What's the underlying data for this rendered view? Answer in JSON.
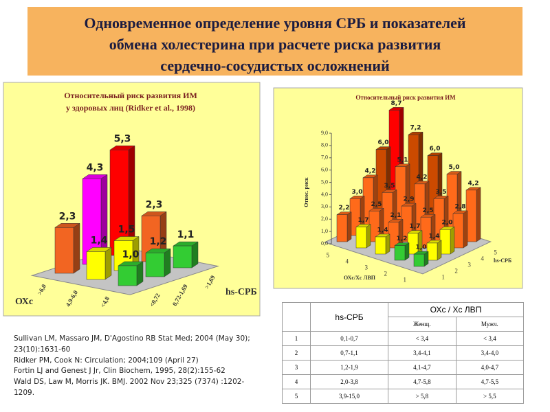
{
  "title_lines": [
    "Одновременное определение уровня СРБ и показателей",
    "обмена холестерина при расчете риска развития",
    "сердечно-сосудистых осложнений"
  ],
  "chart_data": [
    {
      "type": "bar3d",
      "title": [
        "Относительный риск развития ИМ",
        "у здоровых лиц (Ridker et al., 1998)"
      ],
      "x_label": "ОХс",
      "depth_label": "hs-СРБ",
      "categories": [
        ">6,0",
        "4,9-6,0",
        "<4,8"
      ],
      "series": [
        {
          "name": "<0,72",
          "colors": [
            "#f26522",
            "#ffff00",
            "#33cc33"
          ],
          "values": [
            2.3,
            1.4,
            1.0
          ],
          "value_labels": [
            "2,3",
            "1,4",
            "1,0"
          ]
        },
        {
          "name": "0,72-1,69",
          "colors": [
            "#ff00ff",
            "#ffff00",
            "#33cc33"
          ],
          "values": [
            4.3,
            1.5,
            1.2
          ],
          "value_labels": [
            "4,3",
            "1,5",
            "1,2"
          ]
        },
        {
          "name": ">1,69",
          "colors": [
            "#ff0000",
            "#f26522",
            "#33cc33"
          ],
          "values": [
            5.3,
            2.3,
            1.1
          ],
          "value_labels": [
            "5,3",
            "2,3",
            "1,1"
          ]
        }
      ]
    },
    {
      "type": "bar3d",
      "title": [
        "Относительный риск развития ИМ"
      ],
      "y_label": "Относ. риск",
      "x_label": "ОХс/Хс ЛВП",
      "depth_label": "hs-СРБ",
      "ylim": [
        0,
        9
      ],
      "yticks": [
        {
          "value": 0,
          "label": "0,0"
        },
        {
          "value": 1,
          "label": "1,0"
        },
        {
          "value": 2,
          "label": "2,0"
        },
        {
          "value": 3,
          "label": "3,0"
        },
        {
          "value": 4,
          "label": "4,0"
        },
        {
          "value": 5,
          "label": "5,0"
        },
        {
          "value": 6,
          "label": "6,0"
        },
        {
          "value": 7,
          "label": "7,0"
        },
        {
          "value": 8,
          "label": "8,0"
        },
        {
          "value": 9,
          "label": "9,0"
        }
      ],
      "categories": [
        "5",
        "4",
        "3",
        "2",
        "1"
      ],
      "series": [
        {
          "name": "1",
          "colors": [
            "#ff6a1a",
            "#ffff00",
            "#ffff00",
            "#33cc33",
            "#33cc33"
          ],
          "values": [
            2.2,
            1.7,
            1.4,
            1.2,
            1.0
          ],
          "value_labels": [
            "2,2",
            "1,7",
            "1,4",
            "1,2",
            "1,0"
          ]
        },
        {
          "name": "2",
          "colors": [
            "#ff6a1a",
            "#ff6a1a",
            "#ff6a1a",
            "#ffff00",
            "#ffff00"
          ],
          "values": [
            3.0,
            2.5,
            2.1,
            1.7,
            1.4
          ],
          "value_labels": [
            "3,0",
            "2,5",
            "2,1",
            "1,7",
            "1,4"
          ]
        },
        {
          "name": "3",
          "colors": [
            "#ff6a1a",
            "#ff6a1a",
            "#ff6a1a",
            "#ff6a1a",
            "#ffff00"
          ],
          "values": [
            4.2,
            3.5,
            2.9,
            2.5,
            2.0
          ],
          "value_labels": [
            "4,2",
            "3,5",
            "2,9",
            "2,5",
            "2,0"
          ]
        },
        {
          "name": "4",
          "colors": [
            "#cc4a00",
            "#ff6a1a",
            "#ff6a1a",
            "#ff6a1a",
            "#ff6a1a"
          ],
          "values": [
            6.0,
            5.1,
            4.2,
            3.5,
            2.8
          ],
          "value_labels": [
            "6,0",
            "5,1",
            "4,2",
            "3,5",
            "2,8"
          ]
        },
        {
          "name": "5",
          "colors": [
            "#ff0000",
            "#cc4a00",
            "#cc4a00",
            "#ff6a1a",
            "#ff6a1a"
          ],
          "values": [
            8.7,
            7.2,
            6.0,
            5.0,
            4.2
          ],
          "value_labels": [
            "8,7",
            "7,2",
            "6,0",
            "5,0",
            "4,2"
          ]
        }
      ]
    }
  ],
  "references": [
    "Sullivan LM, Massaro JM, D'Agostino RB  Stat Med; 2004 (May 30); 23(10):1631-60",
    "Ridker PM, Cook N: Circulation; 2004;109 (April 27)",
    "Fortin LJ and Genest J Jr, Clin Biochem, 1995, 28(2):155-62",
    "Wald DS, Law M, Morris JK. BMJ. 2002 Nov 23;325 (7374) :1202-1209."
  ],
  "table": {
    "header": [
      "hs-СРБ",
      "ОХс / Хс ЛВП"
    ],
    "subheader": [
      "Женщ.",
      "Мужч."
    ],
    "rows": [
      [
        "1",
        "0,1-0,7",
        "< 3,4",
        "< 3,4"
      ],
      [
        "2",
        "0,7-1,1",
        "3,4-4,1",
        "3,4-4,0"
      ],
      [
        "3",
        "1,2-1,9",
        "4,1-4,7",
        "4,0-4,7"
      ],
      [
        "4",
        "2,0-3,8",
        "4,7-5,8",
        "4,7-5,5"
      ],
      [
        "5",
        "3,9-15,0",
        "> 5,8",
        "> 5,5"
      ]
    ]
  }
}
